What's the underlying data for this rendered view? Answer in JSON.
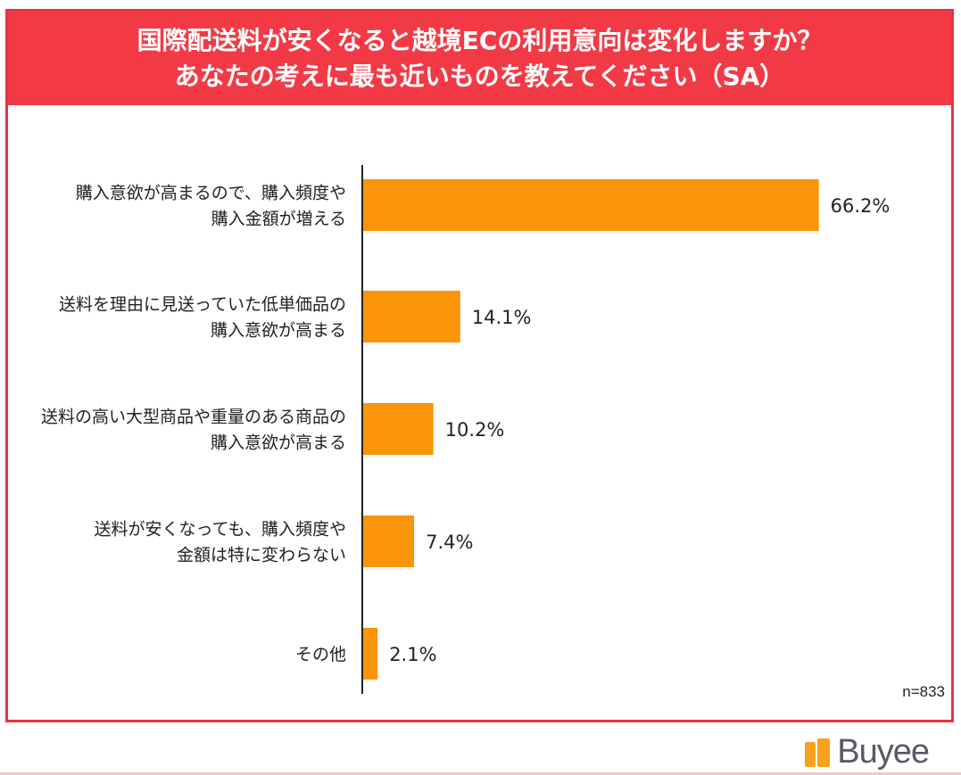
{
  "title": {
    "line1": "国際配送料が安くなると越境ECの利用意向は変化しますか？",
    "line2": "あなたの考えに最も近いものを教えてください（SA）"
  },
  "sample_note": "n=833",
  "logo": {
    "text": "Buyee",
    "icon": "buyee-bag-icon"
  },
  "colors": {
    "title_bg": "#f23a46",
    "bar": "#fa9408",
    "border": "#e8343f"
  },
  "chart_data": {
    "type": "bar",
    "orientation": "horizontal",
    "categories": [
      [
        "購入意欲が高まるので、購入頻度や",
        "購入金額が増える"
      ],
      [
        "送料を理由に見送っていた低単価品の",
        "購入意欲が高まる"
      ],
      [
        "送料の高い大型商品や重量のある商品の",
        "購入意欲が高まる"
      ],
      [
        "送料が安くなっても、購入頻度や",
        "金額は特に変わらない"
      ],
      [
        "その他"
      ]
    ],
    "values": [
      66.2,
      14.1,
      10.2,
      7.4,
      2.1
    ],
    "value_labels": [
      "66.2%",
      "14.1%",
      "10.2%",
      "7.4%",
      "2.1%"
    ],
    "xlim": [
      0,
      70
    ],
    "grid": false,
    "legend": "none"
  }
}
